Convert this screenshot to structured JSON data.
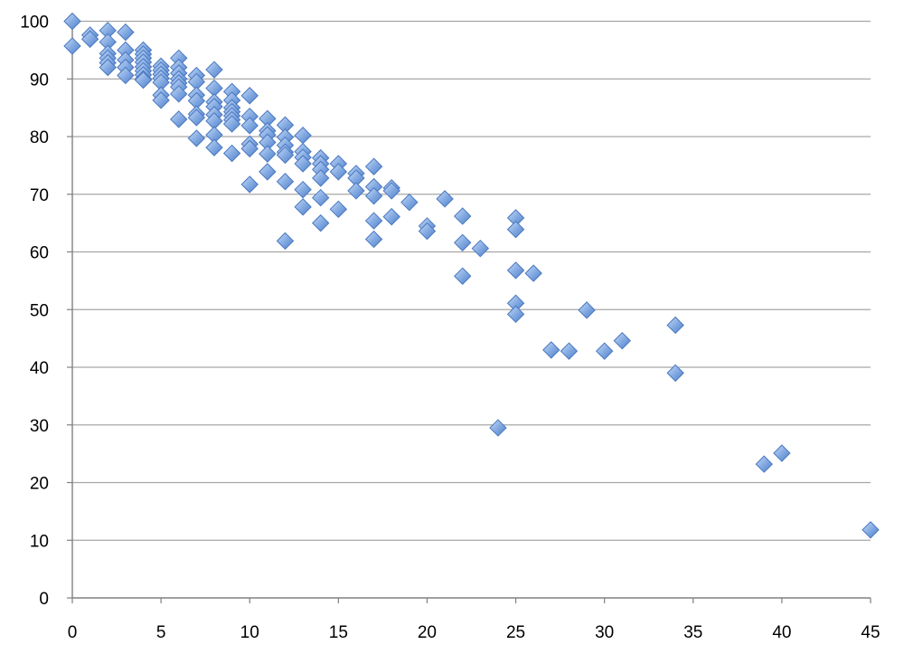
{
  "chart_data": {
    "type": "scatter",
    "title": "",
    "xlabel": "",
    "ylabel": "",
    "xlim": [
      0,
      45
    ],
    "ylim": [
      0,
      100
    ],
    "x_ticks": [
      "0",
      "5",
      "10",
      "15",
      "20",
      "25",
      "30",
      "35",
      "40",
      "45"
    ],
    "y_ticks": [
      "0",
      "10",
      "20",
      "30",
      "40",
      "50",
      "60",
      "70",
      "80",
      "90",
      "100"
    ],
    "grid": "horizontal",
    "legend": "none",
    "marker": "diamond",
    "colors": {
      "marker_fill": "#7ea6e0",
      "marker_stroke": "#4a78c0",
      "gridline": "#a6a6a6",
      "axis": "#808080"
    },
    "points": [
      {
        "x": 0,
        "y": 100
      },
      {
        "x": 0,
        "y": 95.7
      },
      {
        "x": 1,
        "y": 97.6
      },
      {
        "x": 1,
        "y": 96.9
      },
      {
        "x": 2,
        "y": 98.4
      },
      {
        "x": 2,
        "y": 96.4
      },
      {
        "x": 2,
        "y": 94.4
      },
      {
        "x": 2,
        "y": 93.6
      },
      {
        "x": 2,
        "y": 92.8
      },
      {
        "x": 2,
        "y": 92.0
      },
      {
        "x": 3,
        "y": 98.1
      },
      {
        "x": 3,
        "y": 95.0
      },
      {
        "x": 3,
        "y": 93.3
      },
      {
        "x": 3,
        "y": 92.0
      },
      {
        "x": 3,
        "y": 90.6
      },
      {
        "x": 4,
        "y": 95.0
      },
      {
        "x": 4,
        "y": 94.3
      },
      {
        "x": 4,
        "y": 93.6
      },
      {
        "x": 4,
        "y": 92.9
      },
      {
        "x": 4,
        "y": 92.1
      },
      {
        "x": 4,
        "y": 91.4
      },
      {
        "x": 4,
        "y": 90.7
      },
      {
        "x": 4,
        "y": 90.0
      },
      {
        "x": 4,
        "y": 89.8
      },
      {
        "x": 5,
        "y": 92.2
      },
      {
        "x": 5,
        "y": 91.5
      },
      {
        "x": 5,
        "y": 90.8
      },
      {
        "x": 5,
        "y": 90.1
      },
      {
        "x": 5,
        "y": 89.4
      },
      {
        "x": 5,
        "y": 87.2
      },
      {
        "x": 5,
        "y": 86.3
      },
      {
        "x": 6,
        "y": 93.6
      },
      {
        "x": 6,
        "y": 92.0
      },
      {
        "x": 6,
        "y": 91.0
      },
      {
        "x": 6,
        "y": 90.0
      },
      {
        "x": 6,
        "y": 89.3
      },
      {
        "x": 6,
        "y": 88.6
      },
      {
        "x": 6,
        "y": 87.4
      },
      {
        "x": 6,
        "y": 83.0
      },
      {
        "x": 7,
        "y": 90.6
      },
      {
        "x": 7,
        "y": 89.5
      },
      {
        "x": 7,
        "y": 87.2
      },
      {
        "x": 7,
        "y": 86.2
      },
      {
        "x": 7,
        "y": 83.9
      },
      {
        "x": 7,
        "y": 83.3
      },
      {
        "x": 7,
        "y": 79.7
      },
      {
        "x": 8,
        "y": 91.6
      },
      {
        "x": 8,
        "y": 88.4
      },
      {
        "x": 8,
        "y": 86.0
      },
      {
        "x": 8,
        "y": 85.2
      },
      {
        "x": 8,
        "y": 83.8
      },
      {
        "x": 8,
        "y": 82.7
      },
      {
        "x": 8,
        "y": 80.3
      },
      {
        "x": 8,
        "y": 78.1
      },
      {
        "x": 9,
        "y": 87.8
      },
      {
        "x": 9,
        "y": 86.3
      },
      {
        "x": 9,
        "y": 85.0
      },
      {
        "x": 9,
        "y": 84.3
      },
      {
        "x": 9,
        "y": 83.6
      },
      {
        "x": 9,
        "y": 82.9
      },
      {
        "x": 9,
        "y": 82.2
      },
      {
        "x": 9,
        "y": 77.1
      },
      {
        "x": 10,
        "y": 87.1
      },
      {
        "x": 10,
        "y": 83.5
      },
      {
        "x": 10,
        "y": 81.9
      },
      {
        "x": 10,
        "y": 78.7
      },
      {
        "x": 10,
        "y": 77.9
      },
      {
        "x": 10,
        "y": 71.7
      },
      {
        "x": 11,
        "y": 83.1
      },
      {
        "x": 11,
        "y": 81.0
      },
      {
        "x": 11,
        "y": 80.3
      },
      {
        "x": 11,
        "y": 79.0
      },
      {
        "x": 11,
        "y": 77.0
      },
      {
        "x": 11,
        "y": 73.9
      },
      {
        "x": 12,
        "y": 82.0
      },
      {
        "x": 12,
        "y": 79.9
      },
      {
        "x": 12,
        "y": 78.5
      },
      {
        "x": 12,
        "y": 77.3
      },
      {
        "x": 12,
        "y": 76.8
      },
      {
        "x": 12,
        "y": 72.2
      },
      {
        "x": 12,
        "y": 61.9
      },
      {
        "x": 13,
        "y": 80.2
      },
      {
        "x": 13,
        "y": 77.4
      },
      {
        "x": 13,
        "y": 76.4
      },
      {
        "x": 13,
        "y": 75.3
      },
      {
        "x": 13,
        "y": 70.8
      },
      {
        "x": 13,
        "y": 67.8
      },
      {
        "x": 14,
        "y": 76.3
      },
      {
        "x": 14,
        "y": 75.3
      },
      {
        "x": 14,
        "y": 74.3
      },
      {
        "x": 14,
        "y": 72.8
      },
      {
        "x": 14,
        "y": 69.4
      },
      {
        "x": 14,
        "y": 65.0
      },
      {
        "x": 15,
        "y": 75.3
      },
      {
        "x": 15,
        "y": 73.9
      },
      {
        "x": 15,
        "y": 67.4
      },
      {
        "x": 16,
        "y": 73.6
      },
      {
        "x": 16,
        "y": 72.8
      },
      {
        "x": 16,
        "y": 70.6
      },
      {
        "x": 17,
        "y": 74.8
      },
      {
        "x": 17,
        "y": 71.3
      },
      {
        "x": 17,
        "y": 69.7
      },
      {
        "x": 17,
        "y": 65.4
      },
      {
        "x": 17,
        "y": 62.2
      },
      {
        "x": 18,
        "y": 71.1
      },
      {
        "x": 18,
        "y": 70.6
      },
      {
        "x": 18,
        "y": 66.1
      },
      {
        "x": 19,
        "y": 68.6
      },
      {
        "x": 20,
        "y": 64.5
      },
      {
        "x": 20,
        "y": 63.6
      },
      {
        "x": 21,
        "y": 69.2
      },
      {
        "x": 22,
        "y": 66.2
      },
      {
        "x": 22,
        "y": 61.6
      },
      {
        "x": 22,
        "y": 55.8
      },
      {
        "x": 23,
        "y": 60.6
      },
      {
        "x": 24,
        "y": 29.5
      },
      {
        "x": 25,
        "y": 65.9
      },
      {
        "x": 25,
        "y": 63.9
      },
      {
        "x": 25,
        "y": 56.8
      },
      {
        "x": 25,
        "y": 51.1
      },
      {
        "x": 25,
        "y": 49.2
      },
      {
        "x": 26,
        "y": 56.3
      },
      {
        "x": 27,
        "y": 43.0
      },
      {
        "x": 28,
        "y": 42.8
      },
      {
        "x": 29,
        "y": 49.9
      },
      {
        "x": 30,
        "y": 42.8
      },
      {
        "x": 31,
        "y": 44.6
      },
      {
        "x": 34,
        "y": 47.3
      },
      {
        "x": 34,
        "y": 39.0
      },
      {
        "x": 39,
        "y": 23.2
      },
      {
        "x": 40,
        "y": 25.1
      },
      {
        "x": 45,
        "y": 11.8
      }
    ]
  }
}
